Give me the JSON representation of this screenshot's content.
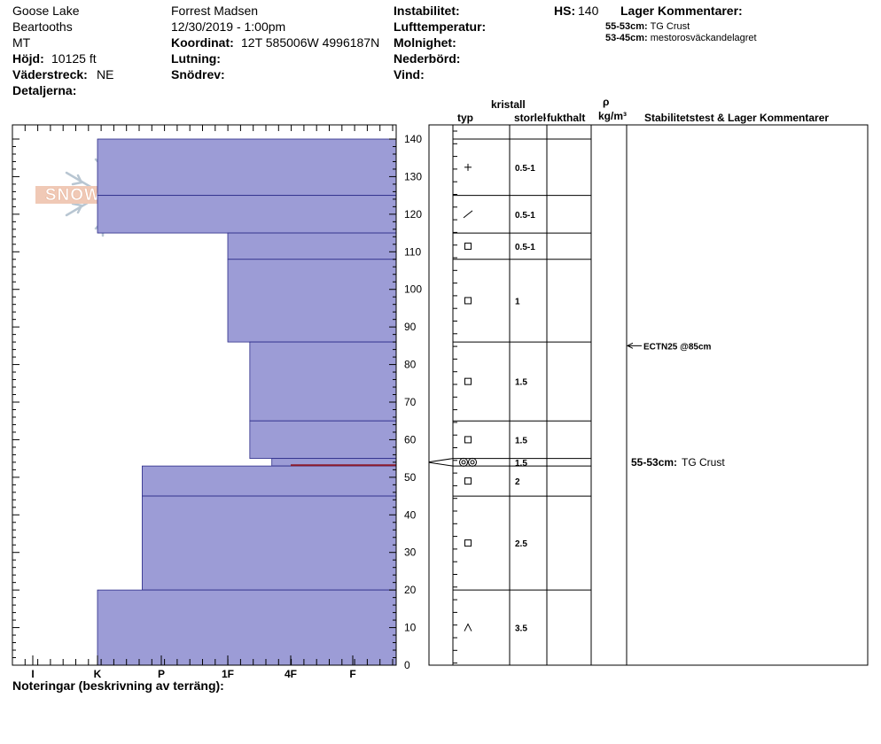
{
  "header": {
    "location": "Goose Lake",
    "range": "Beartooths",
    "state": "MT",
    "elevation_label": "Höjd:",
    "elevation_value": "10125 ft",
    "aspect_label": "Väderstreck:",
    "aspect_value": "NE",
    "details_label": "Detaljerna:",
    "observer": "Forrest Madsen",
    "datetime": "12/30/2019 - 1:00pm",
    "coord_label": "Koordinat:",
    "coord_value": "12T 585006W 4996187N",
    "slope_label": "Lutning:",
    "wind_loading_label": "Snödrev:",
    "instability_label": "Instabilitet:",
    "air_temp_label": "Lufttemperatur:",
    "sky_label": "Molnighet:",
    "precip_label": "Nederbörd:",
    "wind_label": "Vind:",
    "hs_label": "HS:",
    "hs_value": "140",
    "layer_comments_title": "Lager Kommentarer:",
    "layer_comments": [
      {
        "range": "55-53cm:",
        "text": "TG Crust"
      },
      {
        "range": "53-45cm:",
        "text": "mestorosväckandelagret"
      }
    ]
  },
  "columns": {
    "kristall": "kristall",
    "typ": "typ",
    "storlek": "storlek",
    "fukthalt": "fukthalt",
    "rho": "ρ",
    "density_unit": "kg/m³",
    "stability": "Stabilitetstest & Lager Kommentarer"
  },
  "footer": {
    "notes_label": "Noteringar (beskrivning av terräng):"
  },
  "logo_text": "SNOW PILOT",
  "colors": {
    "layer_fill": "#9c9cd6",
    "crust_line": "#8b1a2b"
  },
  "stability_tests": [
    {
      "text": "ECTN25 @85cm",
      "depth_cm": 85
    }
  ],
  "crust_comment": {
    "range": "55-53cm:",
    "text": "TG Crust",
    "depth_cm": 54
  },
  "chart_data": {
    "type": "bar",
    "orientation": "horizontal-layer-profile",
    "ylabel": "",
    "ylim": [
      0,
      140
    ],
    "yticks": [
      0,
      10,
      20,
      30,
      40,
      50,
      60,
      70,
      80,
      90,
      100,
      110,
      120,
      130,
      140
    ],
    "hardness_scale": [
      "I",
      "K",
      "P",
      "1F",
      "4F",
      "F"
    ],
    "layers": [
      {
        "top": 140,
        "bottom": 125,
        "hardness": 1.0,
        "grain": "plus",
        "size": "0.5-1"
      },
      {
        "top": 125,
        "bottom": 115,
        "hardness": 1.0,
        "grain": "slash",
        "size": "0.5-1"
      },
      {
        "top": 115,
        "bottom": 108,
        "hardness": 3.0,
        "grain": "square",
        "size": "0.5-1"
      },
      {
        "top": 108,
        "bottom": 86,
        "hardness": 3.0,
        "grain": "square",
        "size": "1"
      },
      {
        "top": 86,
        "bottom": 65,
        "hardness": 3.35,
        "grain": "square",
        "size": "1.5"
      },
      {
        "top": 65,
        "bottom": 55,
        "hardness": 3.35,
        "grain": "square",
        "size": "1.5"
      },
      {
        "top": 55,
        "bottom": 53,
        "hardness": 3.7,
        "grain": "doublecircle",
        "size": "1.5"
      },
      {
        "top": 53,
        "bottom": 45,
        "hardness": 1.7,
        "grain": "square",
        "size": "2"
      },
      {
        "top": 45,
        "bottom": 20,
        "hardness": 1.7,
        "grain": "square",
        "size": "2.5"
      },
      {
        "top": 20,
        "bottom": 0,
        "hardness": 1.0,
        "grain": "caret",
        "size": "3.5"
      }
    ]
  }
}
